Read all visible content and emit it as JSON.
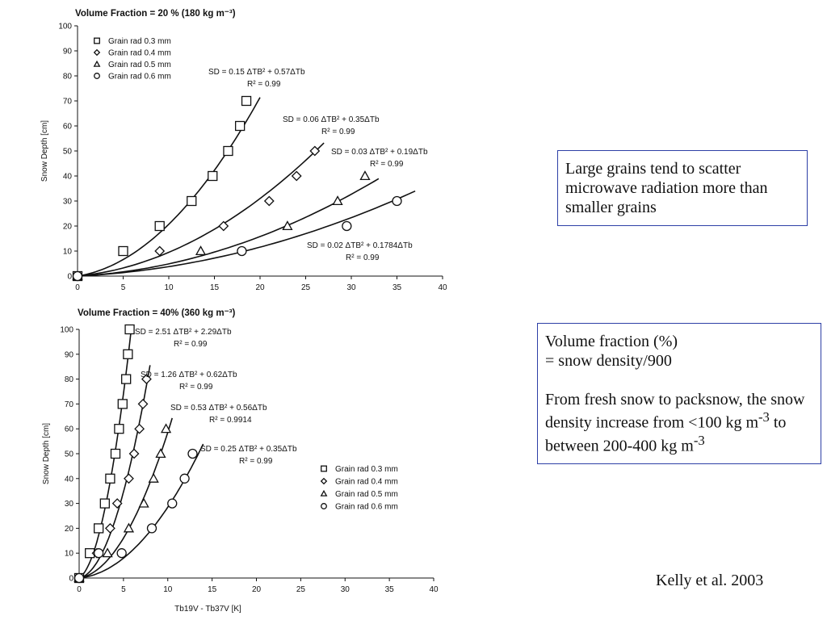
{
  "chart_data": [
    {
      "type": "scatter",
      "title": "Volume Fraction = 20 % (180 kg m⁻³)",
      "xlabel": "",
      "ylabel": "Snow Depth [cm]",
      "xlim": [
        0,
        40
      ],
      "ylim": [
        0,
        100
      ],
      "xticks": [
        "0",
        "5",
        "10",
        "15",
        "20",
        "25",
        "30",
        "35",
        "40"
      ],
      "yticks": [
        "0",
        "10",
        "20",
        "30",
        "40",
        "50",
        "60",
        "70",
        "80",
        "90",
        "100"
      ],
      "legend_position": "top-left",
      "series": [
        {
          "name": "Grain rad 0.3 mm",
          "marker": "square",
          "fit": {
            "a": 0.15,
            "b": 0.57,
            "x_end": 20
          },
          "eq_text": "SD = 0.15 ΔTB² + 0.57ΔTb",
          "r2_text": "R² = 0.99",
          "points": [
            [
              0,
              0
            ],
            [
              5,
              10
            ],
            [
              9,
              20
            ],
            [
              12.5,
              30
            ],
            [
              14.8,
              40
            ],
            [
              16.5,
              50
            ],
            [
              17.8,
              60
            ],
            [
              18.5,
              70
            ]
          ]
        },
        {
          "name": "Grain rad 0.4 mm",
          "marker": "diamond",
          "fit": {
            "a": 0.06,
            "b": 0.35,
            "x_end": 27
          },
          "eq_text": "SD = 0.06 ΔTB² + 0.35ΔTb",
          "r2_text": "R² = 0.99",
          "points": [
            [
              0,
              0
            ],
            [
              9,
              10
            ],
            [
              16,
              20
            ],
            [
              21,
              30
            ],
            [
              24,
              40
            ],
            [
              26,
              50
            ]
          ]
        },
        {
          "name": "Grain rad 0.5 mm",
          "marker": "triangle",
          "fit": {
            "a": 0.03,
            "b": 0.19,
            "x_end": 33
          },
          "eq_text": "SD = 0.03 ΔTB² + 0.19ΔTb",
          "r2_text": "R² = 0.99",
          "points": [
            [
              0,
              0
            ],
            [
              13.5,
              10
            ],
            [
              23,
              20
            ],
            [
              28.5,
              30
            ],
            [
              31.5,
              40
            ]
          ]
        },
        {
          "name": "Grain rad 0.6 mm",
          "marker": "circle",
          "fit": {
            "a": 0.02,
            "b": 0.1784,
            "x_end": 37
          },
          "eq_text": "SD = 0.02 ΔTB² + 0.1784ΔTb",
          "r2_text": "R² = 0.99",
          "points": [
            [
              0,
              0
            ],
            [
              18,
              10
            ],
            [
              29.5,
              20
            ],
            [
              35,
              30
            ]
          ]
        }
      ]
    },
    {
      "type": "scatter",
      "title": "Volume Fraction = 40% (360 kg m⁻³)",
      "xlabel": "Tb19V - Tb37V [K]",
      "ylabel": "Snow Depth [cm]",
      "xlim": [
        0,
        40
      ],
      "ylim": [
        0,
        100
      ],
      "xticks": [
        "0",
        "5",
        "10",
        "15",
        "20",
        "25",
        "30",
        "35",
        "40"
      ],
      "yticks": [
        "0",
        "10",
        "20",
        "30",
        "40",
        "50",
        "60",
        "70",
        "80",
        "90",
        "100"
      ],
      "legend_position": "bottom-right",
      "series": [
        {
          "name": "Grain rad 0.3 mm",
          "marker": "square",
          "fit": {
            "a": 2.51,
            "b": 2.29,
            "x_end": 6
          },
          "eq_text": "SD = 2.51 ΔTB² + 2.29ΔTb",
          "r2_text": "R² = 0.99",
          "points": [
            [
              0,
              0
            ],
            [
              1.2,
              10
            ],
            [
              2.2,
              20
            ],
            [
              2.9,
              30
            ],
            [
              3.5,
              40
            ],
            [
              4.1,
              50
            ],
            [
              4.5,
              60
            ],
            [
              4.9,
              70
            ],
            [
              5.3,
              80
            ],
            [
              5.5,
              90
            ],
            [
              5.7,
              100
            ]
          ]
        },
        {
          "name": "Grain rad 0.4 mm",
          "marker": "diamond",
          "fit": {
            "a": 1.26,
            "b": 0.62,
            "x_end": 8
          },
          "eq_text": "SD = 1.26 ΔTB² + 0.62ΔTb",
          "r2_text": "R² = 0.99",
          "points": [
            [
              0,
              0
            ],
            [
              2,
              10
            ],
            [
              3.5,
              20
            ],
            [
              4.3,
              30
            ],
            [
              5.6,
              40
            ],
            [
              6.2,
              50
            ],
            [
              6.8,
              60
            ],
            [
              7.2,
              70
            ],
            [
              7.6,
              80
            ]
          ]
        },
        {
          "name": "Grain rad 0.5 mm",
          "marker": "triangle",
          "fit": {
            "a": 0.53,
            "b": 0.56,
            "x_end": 10.5
          },
          "eq_text": "SD = 0.53 ΔTB² + 0.56ΔTb",
          "r2_text": "R² = 0.9914",
          "points": [
            [
              0,
              0
            ],
            [
              3.2,
              10
            ],
            [
              5.6,
              20
            ],
            [
              7.3,
              30
            ],
            [
              8.4,
              40
            ],
            [
              9.2,
              50
            ],
            [
              9.8,
              60
            ]
          ]
        },
        {
          "name": "Grain rad 0.6 mm",
          "marker": "circle",
          "fit": {
            "a": 0.25,
            "b": 0.35,
            "x_end": 14
          },
          "eq_text": "SD = 0.25 ΔTB² + 0.35ΔTb",
          "r2_text": "R² = 0.99",
          "points": [
            [
              0,
              0
            ],
            [
              2.2,
              10
            ],
            [
              4.8,
              10
            ],
            [
              8.2,
              20
            ],
            [
              10.5,
              30
            ],
            [
              11.9,
              40
            ],
            [
              12.8,
              50
            ]
          ]
        }
      ]
    }
  ],
  "notes": {
    "grain_note": "Large grains tend to scatter microwave radiation more than smaller grains",
    "vf_line1": "Volume fraction (%)",
    "vf_line2": "= snow density/900",
    "density_text_a": "From fresh snow to packsnow, the snow density increase from <100 kg m",
    "density_sup_a": "-3",
    "density_text_b": " to between 200-400 kg m",
    "density_sup_b": "-3"
  },
  "citation": "Kelly et al. 2003"
}
